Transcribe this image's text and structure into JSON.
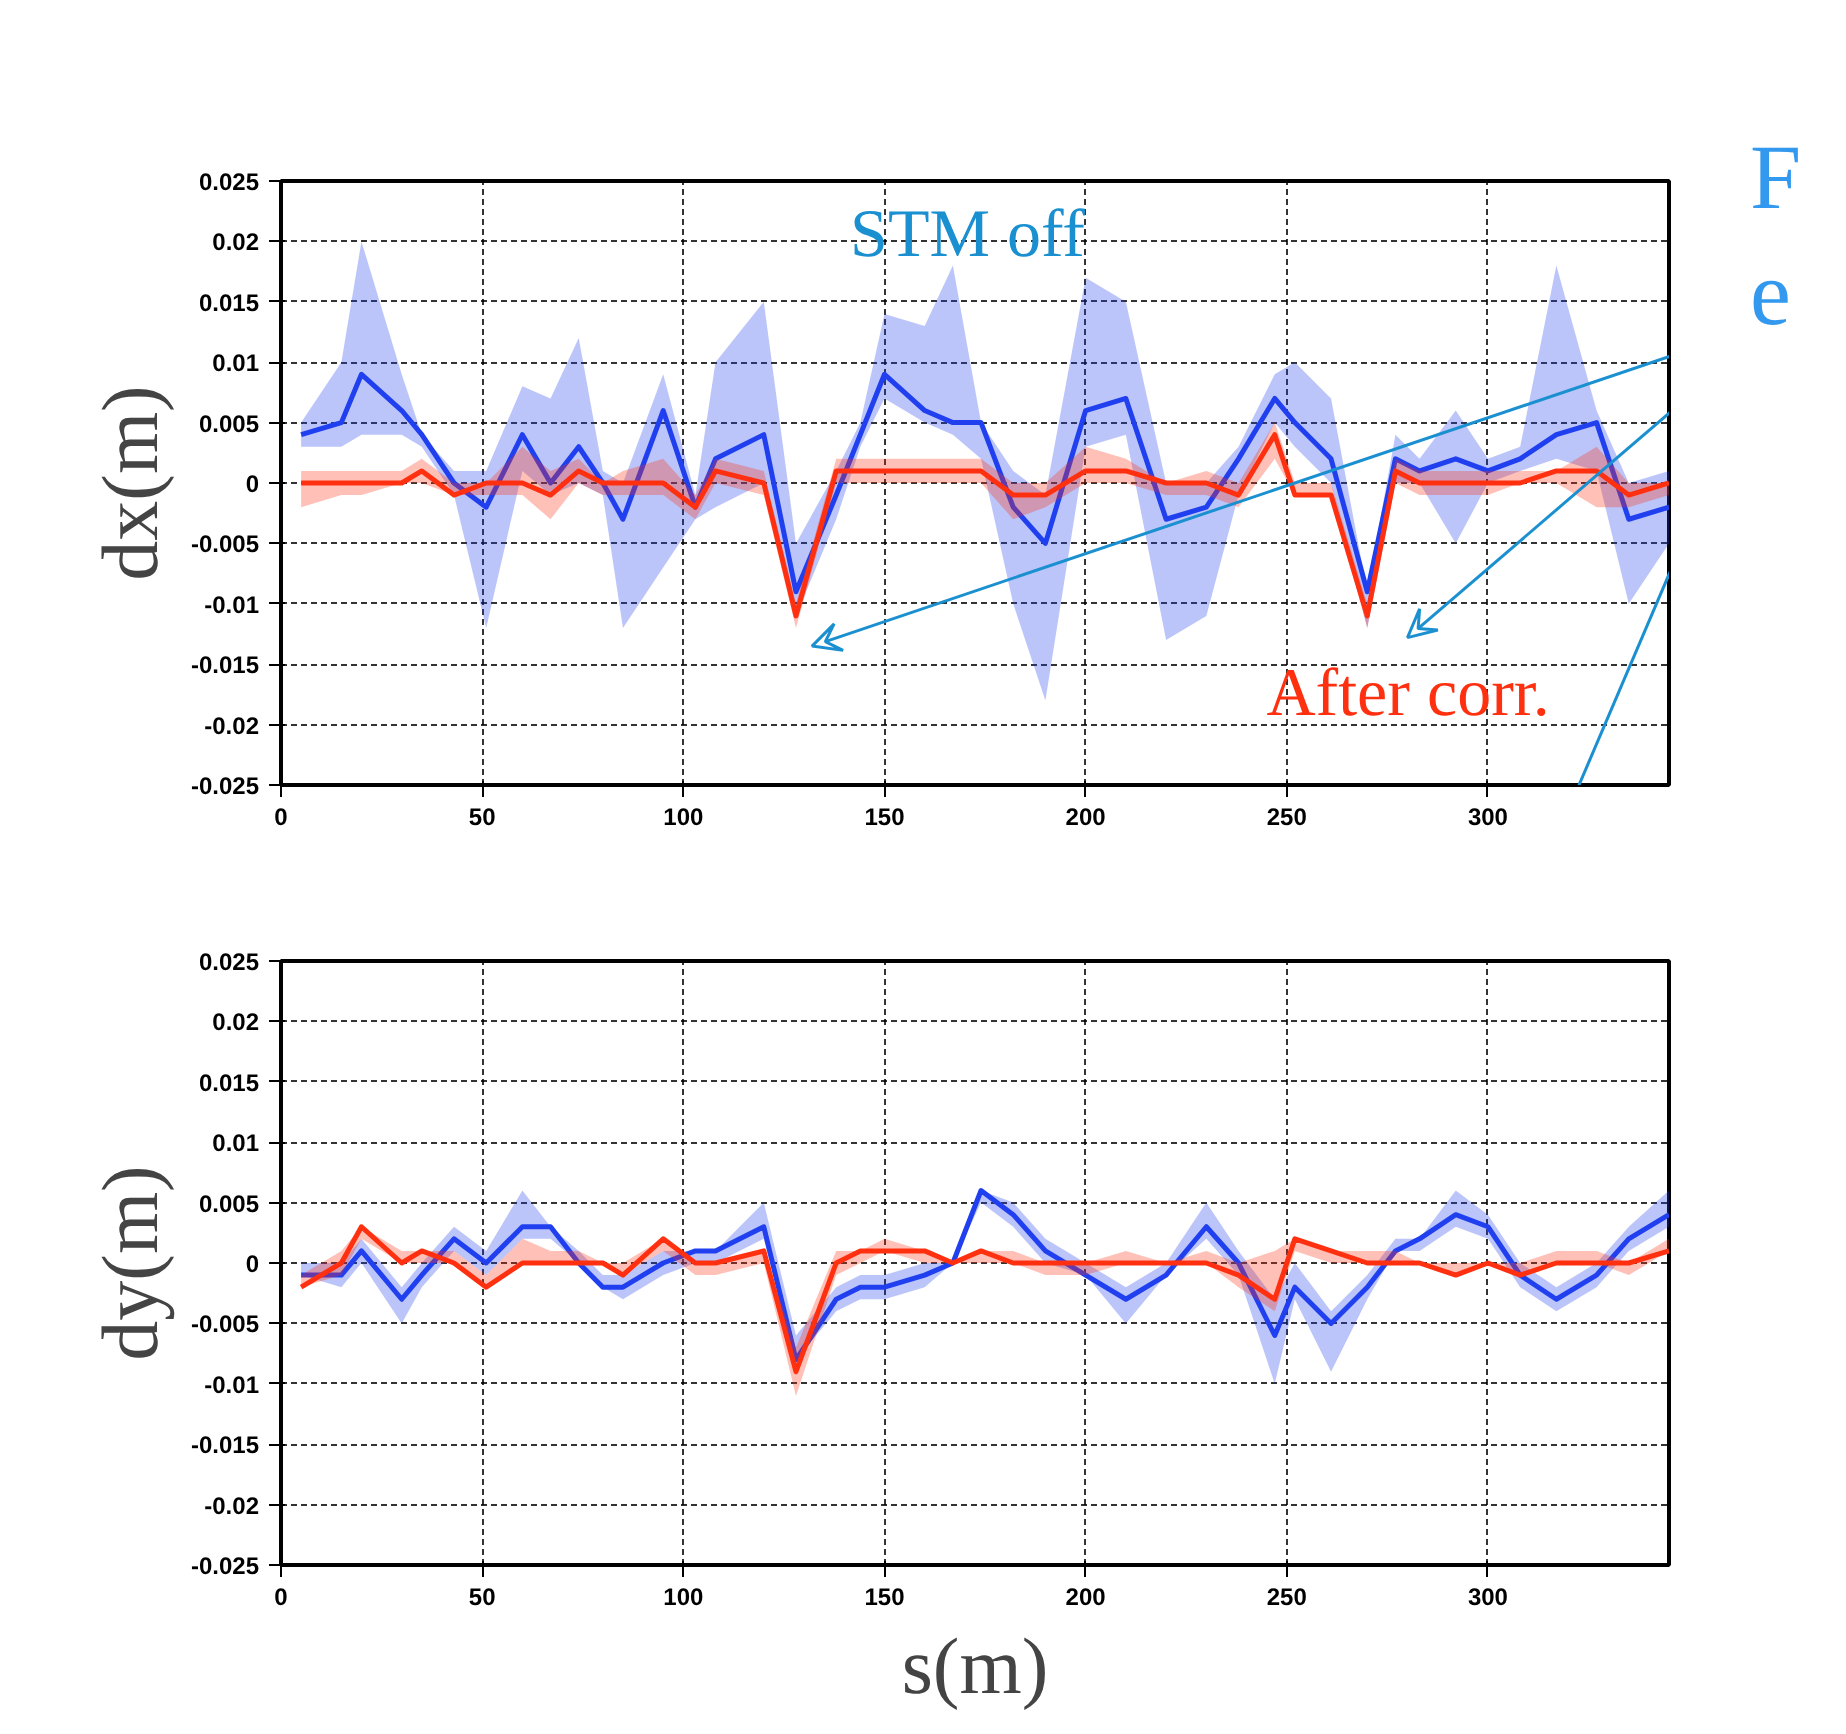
{
  "chart_data": [
    {
      "type": "line",
      "ylabel": "dx(m)",
      "annotations": [
        "STM off",
        "After corr.",
        "F",
        "e"
      ],
      "x": [
        5,
        15,
        20,
        30,
        35,
        43,
        51,
        60,
        67,
        74,
        80,
        85,
        95,
        103,
        108,
        120,
        128,
        138,
        144,
        150,
        160,
        167,
        174,
        182,
        190,
        200,
        210,
        220,
        230,
        238,
        247,
        252,
        261,
        270,
        277,
        283,
        292,
        300,
        308,
        317,
        327,
        335,
        345
      ],
      "series": [
        {
          "color": "#2040f0",
          "values": [
            0.004,
            0.005,
            0.009,
            0.006,
            0.004,
            0,
            -0.002,
            0.004,
            0,
            0.003,
            0,
            -0.003,
            0.006,
            -0.002,
            0.002,
            0.004,
            -0.009,
            -0.001,
            0.004,
            0.009,
            0.006,
            0.005,
            0.005,
            -0.002,
            -0.005,
            0.006,
            0.007,
            -0.003,
            -0.002,
            0.002,
            0.007,
            0.005,
            0.002,
            -0.009,
            0.002,
            0.001,
            0.002,
            0.001,
            0.002,
            0.004,
            0.005,
            -0.003,
            -0.002
          ],
          "lower": [
            0.003,
            0.003,
            0.004,
            0.004,
            0.003,
            -0.001,
            -0.012,
            0.001,
            -0.001,
            0,
            -0.001,
            -0.012,
            -0.007,
            -0.003,
            -0.002,
            0,
            -0.011,
            -0.003,
            0.003,
            0.007,
            0.005,
            0.004,
            0.002,
            -0.01,
            -0.018,
            0.003,
            0.004,
            -0.013,
            -0.011,
            -0.001,
            0.005,
            0.003,
            0,
            -0.012,
            0,
            0,
            -0.005,
            0,
            0.001,
            0.002,
            0.001,
            -0.01,
            -0.005
          ],
          "upper": [
            0.005,
            0.01,
            0.02,
            0.009,
            0.004,
            0.001,
            0.001,
            0.008,
            0.007,
            0.012,
            0.001,
            0,
            0.009,
            -0.001,
            0.01,
            0.015,
            -0.005,
            0.001,
            0.005,
            0.014,
            0.013,
            0.018,
            0.005,
            0.001,
            -0.001,
            0.017,
            0.015,
            0,
            0,
            0.003,
            0.009,
            0.01,
            0.007,
            -0.009,
            0.004,
            0.002,
            0.006,
            0.002,
            0.003,
            0.018,
            0.006,
            0,
            0.001
          ]
        },
        {
          "color": "#ff3010",
          "values": [
            0,
            0,
            0,
            0,
            0.001,
            -0.001,
            0,
            0,
            -0.001,
            0.001,
            0,
            0,
            0,
            -0.002,
            0.001,
            0,
            -0.011,
            0.001,
            0.001,
            0.001,
            0.001,
            0.001,
            0.001,
            -0.001,
            -0.001,
            0.001,
            0.001,
            0,
            0,
            -0.001,
            0.004,
            -0.001,
            -0.001,
            -0.011,
            0.001,
            0,
            0,
            0,
            0,
            0.001,
            0.001,
            -0.001,
            0
          ],
          "lower": [
            -0.002,
            -0.001,
            -0.001,
            0,
            0,
            -0.001,
            -0.001,
            -0.001,
            -0.003,
            0,
            -0.001,
            -0.001,
            -0.001,
            -0.003,
            0,
            -0.001,
            -0.012,
            0,
            0,
            0,
            0,
            0,
            0,
            -0.003,
            -0.002,
            0,
            0,
            -0.001,
            -0.001,
            -0.002,
            0.002,
            -0.001,
            -0.001,
            -0.012,
            0,
            -0.001,
            -0.001,
            -0.001,
            0,
            0,
            -0.002,
            -0.002,
            -0.001
          ],
          "upper": [
            0.001,
            0.001,
            0.001,
            0.001,
            0.002,
            0,
            0,
            0.003,
            0.001,
            0.002,
            0,
            0.001,
            0.002,
            -0.001,
            0.002,
            0.001,
            -0.01,
            0.002,
            0.002,
            0.002,
            0.002,
            0.002,
            0.002,
            0,
            0,
            0.003,
            0.002,
            0,
            0.001,
            0,
            0.005,
            0,
            0,
            -0.01,
            0.002,
            0.001,
            0.001,
            0.001,
            0.001,
            0.001,
            0.003,
            0,
            0
          ]
        }
      ],
      "xlim": [
        0,
        345
      ],
      "ylim": [
        -0.025,
        0.025
      ],
      "xticks": [
        0,
        50,
        100,
        150,
        200,
        250,
        300
      ],
      "yticks": [
        -0.025,
        -0.02,
        -0.015,
        -0.01,
        -0.005,
        0,
        0.005,
        0.01,
        0.015,
        0.02,
        0.025
      ],
      "grid": true
    },
    {
      "type": "line",
      "ylabel": "dy(m)",
      "xlabel": "s(m)",
      "x": [
        5,
        15,
        20,
        30,
        35,
        43,
        51,
        60,
        67,
        74,
        80,
        85,
        95,
        103,
        108,
        120,
        128,
        138,
        144,
        150,
        160,
        167,
        174,
        182,
        190,
        200,
        210,
        220,
        230,
        238,
        247,
        252,
        261,
        270,
        277,
        283,
        292,
        300,
        308,
        317,
        327,
        335,
        345
      ],
      "series": [
        {
          "color": "#2040f0",
          "values": [
            -0.001,
            -0.001,
            0.001,
            -0.003,
            -0.001,
            0.002,
            0,
            0.003,
            0.003,
            0,
            -0.002,
            -0.002,
            0,
            0.001,
            0.001,
            0.003,
            -0.008,
            -0.003,
            -0.002,
            -0.002,
            -0.001,
            0,
            0.006,
            0.004,
            0.001,
            -0.001,
            -0.003,
            -0.001,
            0.003,
            0,
            -0.006,
            -0.002,
            -0.005,
            -0.002,
            0.001,
            0.002,
            0.004,
            0.003,
            -0.001,
            -0.003,
            -0.001,
            0.002,
            0.004
          ],
          "lower": [
            -0.001,
            -0.002,
            0,
            -0.005,
            -0.002,
            0.001,
            -0.001,
            0.002,
            0.002,
            0,
            -0.002,
            -0.003,
            -0.001,
            0,
            0,
            0.002,
            -0.008,
            -0.004,
            -0.003,
            -0.003,
            -0.002,
            0,
            0.005,
            0.003,
            0,
            -0.001,
            -0.005,
            -0.001,
            0.002,
            -0.001,
            -0.01,
            -0.003,
            -0.009,
            -0.003,
            0.001,
            0.001,
            0.003,
            0.002,
            -0.002,
            -0.004,
            -0.002,
            0.001,
            0.003
          ],
          "upper": [
            0,
            0,
            0.002,
            -0.002,
            0,
            0.003,
            0.001,
            0.006,
            0.003,
            0.001,
            -0.001,
            -0.001,
            0.001,
            0.001,
            0.001,
            0.005,
            -0.006,
            -0.002,
            -0.001,
            -0.001,
            0,
            0,
            0.006,
            0.005,
            0.002,
            0,
            -0.002,
            0,
            0.005,
            0.001,
            -0.003,
            0,
            -0.004,
            -0.001,
            0.002,
            0.002,
            0.006,
            0.004,
            0,
            -0.002,
            0,
            0.003,
            0.006
          ]
        },
        {
          "color": "#ff3010",
          "values": [
            -0.002,
            0,
            0.003,
            0,
            0.001,
            0,
            -0.002,
            0,
            0,
            0,
            0,
            -0.001,
            0.002,
            0,
            0,
            0.001,
            -0.009,
            0,
            0.001,
            0.001,
            0.001,
            0,
            0.001,
            0,
            0,
            0,
            0,
            0,
            0,
            -0.001,
            -0.003,
            0.002,
            0.001,
            0,
            0,
            0,
            -0.001,
            0,
            -0.001,
            0,
            0,
            0,
            0.001
          ],
          "lower": [
            -0.002,
            -0.001,
            0.002,
            0,
            0,
            0,
            -0.002,
            0,
            0,
            0,
            0,
            -0.001,
            0.001,
            -0.001,
            -0.001,
            0,
            -0.011,
            -0.001,
            0,
            0.001,
            0,
            0,
            0,
            0,
            -0.001,
            -0.001,
            0,
            0,
            0,
            -0.002,
            -0.004,
            0.001,
            0,
            0,
            0,
            0,
            -0.001,
            0,
            -0.001,
            0,
            0,
            -0.001,
            0.001
          ],
          "upper": [
            -0.001,
            0.001,
            0.003,
            0.001,
            0.001,
            0.001,
            -0.001,
            0.002,
            0.001,
            0.001,
            0,
            0,
            0.002,
            0,
            0,
            0.001,
            -0.007,
            0.001,
            0.001,
            0.002,
            0.001,
            0,
            0.001,
            0.001,
            0,
            0,
            0.001,
            0,
            0.001,
            0,
            0.001,
            0.002,
            0.001,
            0.001,
            0.001,
            0,
            0,
            0,
            0,
            0.001,
            0.001,
            0,
            0.002
          ]
        }
      ],
      "xlim": [
        0,
        345
      ],
      "ylim": [
        -0.025,
        0.025
      ],
      "xticks": [
        0,
        50,
        100,
        150,
        200,
        250,
        300
      ],
      "yticks": [
        -0.025,
        -0.02,
        -0.015,
        -0.01,
        -0.005,
        0,
        0.005,
        0.01,
        0.015,
        0.02,
        0.025
      ],
      "grid": true
    }
  ]
}
